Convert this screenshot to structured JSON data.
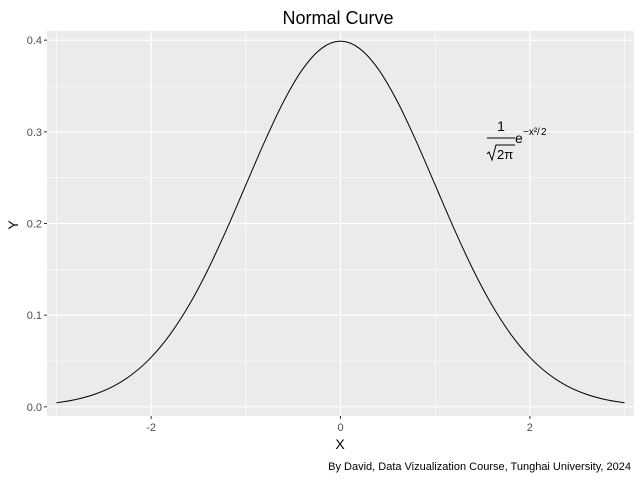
{
  "chart_data": {
    "type": "line",
    "title": "Normal Curve",
    "xlabel": "X",
    "ylabel": "Y",
    "xlim": [
      -3.1,
      3.1
    ],
    "ylim": [
      -0.01,
      0.41
    ],
    "x_ticks": [
      -2,
      0,
      2
    ],
    "x_tick_labels": [
      "-2",
      "0",
      "2"
    ],
    "y_ticks": [
      0.0,
      0.1,
      0.2,
      0.3,
      0.4
    ],
    "y_tick_labels": [
      "0.0",
      "0.1",
      "0.2",
      "0.3",
      "0.4"
    ],
    "grid": true,
    "background": "#ebebeb",
    "grid_major_color": "#ffffff",
    "line_color": "#000000",
    "series": [
      {
        "x": [
          -3.0,
          -2.8,
          -2.6,
          -2.4,
          -2.2,
          -2.0,
          -1.8,
          -1.6,
          -1.4,
          -1.2,
          -1.0,
          -0.8,
          -0.6,
          -0.4,
          -0.2,
          0.0,
          0.2,
          0.4,
          0.6,
          0.8,
          1.0,
          1.2,
          1.4,
          1.6,
          1.8,
          2.0,
          2.2,
          2.4,
          2.6,
          2.8,
          3.0
        ],
        "values": [
          0.0044,
          0.0079,
          0.0136,
          0.0224,
          0.0355,
          0.054,
          0.079,
          0.1109,
          0.1497,
          0.1942,
          0.242,
          0.2897,
          0.3332,
          0.3683,
          0.391,
          0.3989,
          0.391,
          0.3683,
          0.3332,
          0.2897,
          0.242,
          0.1942,
          0.1497,
          0.1109,
          0.079,
          0.054,
          0.0355,
          0.0224,
          0.0136,
          0.0079,
          0.0044
        ]
      }
    ],
    "annotation": {
      "x": 2.0,
      "y": 0.305,
      "numerator": "1",
      "root_content": "2π",
      "base": "e",
      "exponent_num": "−x²",
      "exponent_den": "2"
    },
    "caption": "By David, Data Vizualization Course, Tunghai University, 2024"
  }
}
